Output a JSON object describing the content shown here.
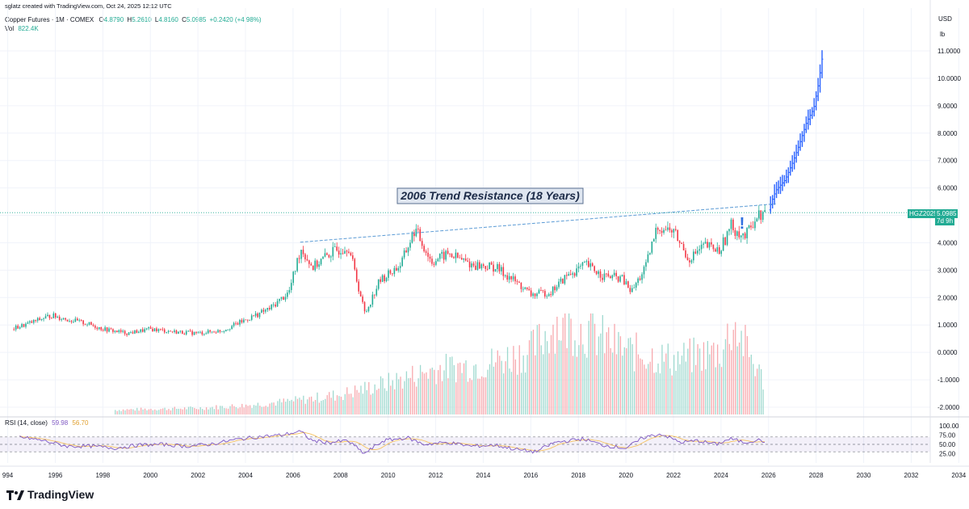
{
  "header": {
    "created_by": "sglatz created with TradingView.com, Oct 24, 2025 12:12 UTC",
    "instrument": "Copper Futures · 1M · COMEX",
    "ohlc": {
      "o_label": "O",
      "o": "4.8790",
      "h_label": "H",
      "h": "5.2610",
      "l_label": "L",
      "l": "4.8160",
      "c_label": "C",
      "c": "5.0985",
      "change": "+0.2420 (+4.98%)"
    },
    "vol_label": "Vol",
    "vol_value": "822.4K"
  },
  "right_scale": {
    "currency": "USD",
    "unit": "lb",
    "ticks": [
      "11.0000",
      "10.0000",
      "9.0000",
      "8.0000",
      "7.0000",
      "6.0000",
      "5.0000",
      "4.0000",
      "3.0000",
      "2.0000",
      "1.0000",
      "0.0000",
      "-1.0000",
      "-2.0000"
    ],
    "rsi_ticks": [
      "100.00",
      "75.00",
      "50.00",
      "25.00"
    ]
  },
  "price_tag": {
    "symbol": "HGZ2025",
    "price": "5.0985",
    "countdown": "7d 9h"
  },
  "annotation": {
    "text": "2006 Trend Resistance (18 Years)",
    "exclamation": "!"
  },
  "rsi": {
    "label": "RSI (14, close)",
    "v1": "59.98",
    "v2": "56.70"
  },
  "x_axis": {
    "labels": [
      "994",
      "1996",
      "1998",
      "2000",
      "2002",
      "2004",
      "2006",
      "2008",
      "2010",
      "2012",
      "2014",
      "2016",
      "2018",
      "2020",
      "2022",
      "2024",
      "2026",
      "2028",
      "2030",
      "2032",
      "2034"
    ]
  },
  "brand": {
    "name": "TradingView"
  },
  "colors": {
    "up": "#22ab94",
    "down": "#f23645",
    "projection": "#2962ff",
    "trend": "#5b9bd5",
    "rsi_line": "#7e57c2",
    "rsi_ma": "#f7c35f"
  },
  "chart_data": {
    "type": "candlestick",
    "instrument": "Copper Futures",
    "interval": "1M",
    "y_unit": "USD/lb",
    "ylim": [
      -2.5,
      11.5
    ],
    "x_range": [
      1994,
      2035
    ],
    "price_path": [
      [
        1994.0,
        0.8
      ],
      [
        1995.0,
        1.1
      ],
      [
        1995.8,
        1.35
      ],
      [
        1996.5,
        1.2
      ],
      [
        1997.3,
        1.05
      ],
      [
        1998.0,
        0.85
      ],
      [
        1999.0,
        0.7
      ],
      [
        2000.0,
        0.85
      ],
      [
        2001.0,
        0.75
      ],
      [
        2002.0,
        0.7
      ],
      [
        2003.0,
        0.8
      ],
      [
        2004.0,
        1.2
      ],
      [
        2005.0,
        1.6
      ],
      [
        2005.8,
        2.2
      ],
      [
        2006.3,
        3.8
      ],
      [
        2006.8,
        3.1
      ],
      [
        2007.5,
        3.6
      ],
      [
        2008.3,
        3.9
      ],
      [
        2009.0,
        1.4
      ],
      [
        2009.6,
        2.6
      ],
      [
        2010.5,
        3.2
      ],
      [
        2011.1,
        4.5
      ],
      [
        2011.8,
        3.3
      ],
      [
        2012.5,
        3.6
      ],
      [
        2013.5,
        3.2
      ],
      [
        2014.5,
        3.1
      ],
      [
        2015.3,
        2.6
      ],
      [
        2016.0,
        2.1
      ],
      [
        2016.8,
        2.2
      ],
      [
        2017.5,
        2.8
      ],
      [
        2018.3,
        3.2
      ],
      [
        2019.0,
        2.8
      ],
      [
        2019.8,
        2.7
      ],
      [
        2020.2,
        2.2
      ],
      [
        2020.8,
        3.1
      ],
      [
        2021.3,
        4.6
      ],
      [
        2022.0,
        4.4
      ],
      [
        2022.6,
        3.4
      ],
      [
        2023.3,
        3.9
      ],
      [
        2023.9,
        3.7
      ],
      [
        2024.4,
        4.6
      ],
      [
        2025.0,
        4.2
      ],
      [
        2025.4,
        4.9
      ],
      [
        2025.8,
        5.1
      ]
    ],
    "projection_path": [
      [
        2026.0,
        5.2
      ],
      [
        2026.3,
        5.9
      ],
      [
        2026.7,
        6.3
      ],
      [
        2027.0,
        6.9
      ],
      [
        2027.3,
        7.6
      ],
      [
        2027.6,
        8.4
      ],
      [
        2027.9,
        8.9
      ],
      [
        2028.1,
        9.8
      ],
      [
        2028.3,
        11.0
      ]
    ],
    "trend_line": {
      "start": [
        2006.3,
        4.02
      ],
      "end": [
        2026.3,
        5.42
      ]
    },
    "price_level": 5.0985,
    "volume_profile": [
      [
        1998.5,
        0.05
      ],
      [
        2000.0,
        0.06
      ],
      [
        2002.0,
        0.07
      ],
      [
        2004.0,
        0.1
      ],
      [
        2006.0,
        0.15
      ],
      [
        2008.0,
        0.22
      ],
      [
        2010.0,
        0.35
      ],
      [
        2012.0,
        0.5
      ],
      [
        2014.0,
        0.55
      ],
      [
        2016.0,
        0.7
      ],
      [
        2017.0,
        1.0
      ],
      [
        2018.5,
        0.9
      ],
      [
        2020.0,
        0.7
      ],
      [
        2022.0,
        0.6
      ],
      [
        2024.0,
        0.7
      ],
      [
        2024.5,
        1.0
      ],
      [
        2025.8,
        0.35
      ]
    ],
    "rsi_ylim": [
      0,
      100
    ],
    "rsi_levels": [
      70,
      50,
      30
    ],
    "rsi_path": [
      [
        1994.5,
        70
      ],
      [
        1995.5,
        60
      ],
      [
        1996.5,
        45
      ],
      [
        1997.5,
        45
      ],
      [
        1998.5,
        40
      ],
      [
        1999.5,
        48
      ],
      [
        2000.5,
        50
      ],
      [
        2001.5,
        45
      ],
      [
        2002.5,
        50
      ],
      [
        2003.5,
        62
      ],
      [
        2004.5,
        70
      ],
      [
        2005.5,
        75
      ],
      [
        2006.3,
        85
      ],
      [
        2006.8,
        60
      ],
      [
        2007.5,
        55
      ],
      [
        2008.3,
        60
      ],
      [
        2009.0,
        25
      ],
      [
        2009.8,
        60
      ],
      [
        2010.8,
        68
      ],
      [
        2011.5,
        50
      ],
      [
        2012.5,
        55
      ],
      [
        2013.5,
        45
      ],
      [
        2014.5,
        48
      ],
      [
        2015.5,
        35
      ],
      [
        2016.2,
        30
      ],
      [
        2017.0,
        55
      ],
      [
        2018.2,
        65
      ],
      [
        2019.0,
        48
      ],
      [
        2020.0,
        40
      ],
      [
        2020.8,
        70
      ],
      [
        2021.5,
        78
      ],
      [
        2022.3,
        55
      ],
      [
        2023.0,
        60
      ],
      [
        2023.8,
        50
      ],
      [
        2024.4,
        65
      ],
      [
        2025.0,
        55
      ],
      [
        2025.5,
        62
      ],
      [
        2025.9,
        58
      ]
    ]
  }
}
